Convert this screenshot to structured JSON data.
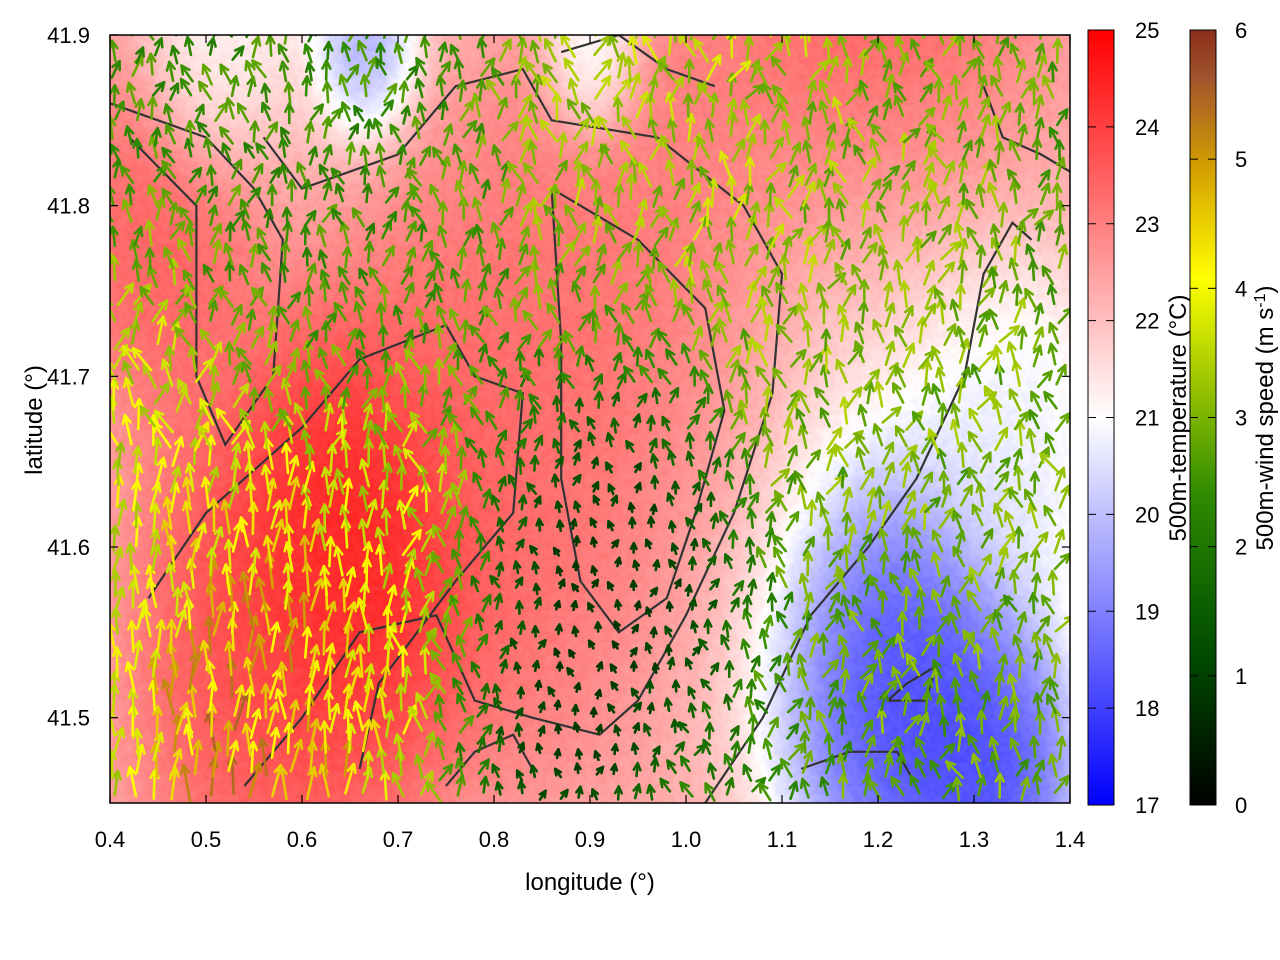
{
  "chart_data": {
    "type": "heatmap",
    "overlay": "wind-vectors",
    "xlabel": "longitude (°)",
    "ylabel": "latitude (°)",
    "xlim": [
      0.4,
      1.4
    ],
    "ylim": [
      41.45,
      41.9
    ],
    "x_ticks": [
      "0.4",
      "0.5",
      "0.6",
      "0.7",
      "0.8",
      "0.9",
      "1.0",
      "1.1",
      "1.2",
      "1.3",
      "1.4"
    ],
    "y_ticks": [
      "41.5",
      "41.6",
      "41.7",
      "41.8",
      "41.9"
    ],
    "grid": false,
    "colorbars": [
      {
        "id": "temperature",
        "label": "500m-temperature (°C)",
        "range": [
          17,
          25
        ],
        "ticks": [
          "17",
          "18",
          "19",
          "20",
          "21",
          "22",
          "23",
          "24",
          "25"
        ],
        "colors": [
          "#0000ff",
          "#ffffff",
          "#ff0000"
        ]
      },
      {
        "id": "wind_speed",
        "label_main": "500m-wind speed (m s",
        "label_sup": "-1",
        "label_end": ")",
        "range": [
          0,
          6
        ],
        "ticks": [
          "0",
          "1",
          "2",
          "3",
          "4",
          "5",
          "6"
        ],
        "colors": [
          "#000000",
          "#004d00",
          "#2e8b00",
          "#a0c800",
          "#ffff00",
          "#d4a000",
          "#a0522d",
          "#8b2e1a"
        ]
      }
    ],
    "temperature_features": [
      {
        "lon": 0.65,
        "lat": 41.6,
        "value": 25.0,
        "spread": 0.09
      },
      {
        "lon": 0.58,
        "lat": 41.53,
        "value": 24.0,
        "spread": 0.12
      },
      {
        "lon": 0.85,
        "lat": 41.72,
        "value": 23.5,
        "spread": 0.18
      },
      {
        "lon": 0.45,
        "lat": 41.78,
        "value": 23.8,
        "spread": 0.08
      },
      {
        "lon": 1.23,
        "lat": 41.5,
        "value": 17.3,
        "spread": 0.1
      },
      {
        "lon": 1.32,
        "lat": 41.46,
        "value": 17.5,
        "spread": 0.07
      },
      {
        "lon": 1.35,
        "lat": 41.66,
        "value": 20.5,
        "spread": 0.08
      },
      {
        "lon": 0.67,
        "lat": 41.89,
        "value": 19.0,
        "spread": 0.04
      },
      {
        "lon": 0.9,
        "lat": 41.89,
        "value": 20.0,
        "spread": 0.04
      },
      {
        "lon": 0.5,
        "lat": 41.88,
        "value": 21.0,
        "spread": 0.05
      }
    ],
    "contours": [
      [
        [
          0.4,
          41.86
        ],
        [
          0.5,
          41.84
        ],
        [
          0.55,
          41.81
        ],
        [
          0.58,
          41.78
        ],
        [
          0.57,
          41.7
        ],
        [
          0.52,
          41.66
        ],
        [
          0.49,
          41.7
        ],
        [
          0.49,
          41.8
        ],
        [
          0.42,
          41.84
        ]
      ],
      [
        [
          0.44,
          41.57
        ],
        [
          0.5,
          41.62
        ],
        [
          0.6,
          41.67
        ],
        [
          0.66,
          41.71
        ],
        [
          0.75,
          41.73
        ],
        [
          0.78,
          41.7
        ],
        [
          0.83,
          41.69
        ],
        [
          0.82,
          41.62
        ],
        [
          0.76,
          41.58
        ],
        [
          0.72,
          41.55
        ],
        [
          0.68,
          41.52
        ],
        [
          0.66,
          41.47
        ]
      ],
      [
        [
          0.54,
          41.46
        ],
        [
          0.6,
          41.5
        ],
        [
          0.66,
          41.55
        ],
        [
          0.74,
          41.56
        ],
        [
          0.78,
          41.51
        ],
        [
          0.84,
          41.5
        ],
        [
          0.91,
          41.49
        ],
        [
          0.95,
          41.51
        ],
        [
          1.0,
          41.56
        ],
        [
          1.05,
          41.62
        ],
        [
          1.09,
          41.69
        ],
        [
          1.1,
          41.76
        ],
        [
          1.06,
          41.8
        ],
        [
          0.97,
          41.84
        ],
        [
          0.86,
          41.85
        ],
        [
          0.83,
          41.88
        ],
        [
          0.76,
          41.87
        ],
        [
          0.7,
          41.83
        ],
        [
          0.6,
          41.81
        ],
        [
          0.56,
          41.84
        ]
      ],
      [
        [
          0.86,
          41.81
        ],
        [
          0.95,
          41.78
        ],
        [
          1.02,
          41.74
        ],
        [
          1.04,
          41.68
        ],
        [
          1.01,
          41.62
        ],
        [
          0.98,
          41.57
        ],
        [
          0.93,
          41.55
        ],
        [
          0.89,
          41.58
        ],
        [
          0.87,
          41.64
        ],
        [
          0.87,
          41.72
        ],
        [
          0.86,
          41.81
        ]
      ],
      [
        [
          0.75,
          41.46
        ],
        [
          0.78,
          41.48
        ],
        [
          0.82,
          41.49
        ],
        [
          0.84,
          41.47
        ]
      ],
      [
        [
          1.02,
          41.45
        ],
        [
          1.08,
          41.5
        ],
        [
          1.13,
          41.56
        ],
        [
          1.19,
          41.6
        ],
        [
          1.24,
          41.64
        ],
        [
          1.29,
          41.7
        ],
        [
          1.31,
          41.76
        ],
        [
          1.34,
          41.79
        ],
        [
          1.36,
          41.78
        ]
      ],
      [
        [
          1.12,
          41.47
        ],
        [
          1.17,
          41.48
        ],
        [
          1.22,
          41.48
        ],
        [
          1.24,
          41.46
        ]
      ],
      [
        [
          1.21,
          41.51
        ],
        [
          1.25,
          41.51
        ],
        [
          1.26,
          41.53
        ],
        [
          1.23,
          41.52
        ],
        [
          1.21,
          41.51
        ]
      ],
      [
        [
          0.87,
          41.89
        ],
        [
          0.93,
          41.9
        ],
        [
          0.98,
          41.88
        ],
        [
          1.03,
          41.87
        ]
      ],
      [
        [
          1.31,
          41.87
        ],
        [
          1.33,
          41.84
        ],
        [
          1.37,
          41.83
        ],
        [
          1.4,
          41.82
        ]
      ]
    ],
    "wind_field": {
      "grid_step_lon": 0.02,
      "grid_step_lat": 0.012,
      "direction": "mostly from the south / south-west",
      "features": [
        {
          "lon": 0.55,
          "lat": 41.5,
          "speed": 5.5,
          "spread": 0.12
        },
        {
          "lon": 0.7,
          "lat": 41.56,
          "speed": 4.2,
          "spread": 0.1
        },
        {
          "lon": 0.45,
          "lat": 41.65,
          "speed": 4.0,
          "spread": 0.1
        },
        {
          "lon": 0.85,
          "lat": 41.53,
          "speed": 0.3,
          "spread": 0.1
        },
        {
          "lon": 0.95,
          "lat": 41.6,
          "speed": 0.4,
          "spread": 0.09
        },
        {
          "lon": 1.2,
          "lat": 41.75,
          "speed": 3.2,
          "spread": 0.15
        },
        {
          "lon": 1.32,
          "lat": 41.55,
          "speed": 3.0,
          "spread": 0.12
        },
        {
          "lon": 1.0,
          "lat": 41.85,
          "speed": 3.6,
          "spread": 0.15
        },
        {
          "lon": 0.6,
          "lat": 41.85,
          "speed": 2.4,
          "spread": 0.15
        }
      ]
    }
  }
}
